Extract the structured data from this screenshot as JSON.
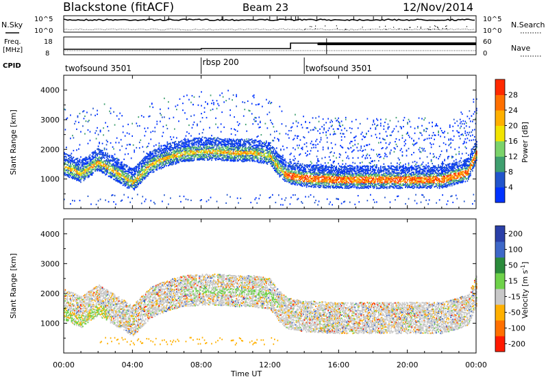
{
  "header": {
    "station": "Blackstone (fitACF)",
    "beam": "Beam 23",
    "date": "12/Nov/2014"
  },
  "labels": {
    "nsky": "N.Sky",
    "nsearch": "N.Search",
    "freq_line1": "Freq.",
    "freq_line2": "[MHz]",
    "cpid": "CPID",
    "nave": "Nave",
    "nsky_top": "10^5",
    "nsky_bottom": "10^0",
    "nsearch_top": "10^5",
    "nsearch_bottom": "10^0",
    "freq_top": "18",
    "freq_bottom": "8",
    "nave_top": "60",
    "nave_bottom": "0"
  },
  "cpid_segments": [
    {
      "label": "twofsound 3501",
      "start_h": 0,
      "end_h": 8
    },
    {
      "label": "rbsp 200",
      "start_h": 8,
      "end_h": 14
    },
    {
      "label": "twofsound 3501",
      "start_h": 14,
      "end_h": 24
    }
  ],
  "chart_data": [
    {
      "type": "heatmap",
      "title": "Power",
      "xlabel": "",
      "ylabel": "Slant Range [km]",
      "colorbar_label": "Power [dB]",
      "xlim": [
        0,
        24
      ],
      "ylim": [
        0,
        4500
      ],
      "yticks": [
        1000,
        2000,
        3000,
        4000
      ],
      "colorbar_ticks": [
        4,
        8,
        12,
        16,
        20,
        24,
        28
      ],
      "colorbar_range": [
        0,
        32
      ],
      "colors": [
        "#0033ff",
        "#2255cc",
        "#3f9f6f",
        "#7bd36b",
        "#f2e400",
        "#ffb000",
        "#ff7000",
        "#ff2a00"
      ],
      "bands": [
        {
          "x": [
            0,
            1,
            2,
            3,
            4,
            5,
            6,
            7,
            8,
            9,
            10,
            11,
            12,
            12.5,
            13,
            14,
            16,
            18,
            20,
            22,
            23.5,
            24
          ],
          "y": [
            1450,
            1200,
            1600,
            1250,
            900,
            1500,
            1750,
            1900,
            1950,
            1950,
            1900,
            1900,
            1800,
            1400,
            1150,
            1050,
            1000,
            1000,
            1000,
            1000,
            1250,
            1900
          ],
          "level": 0.75
        }
      ]
    },
    {
      "type": "heatmap",
      "title": "Velocity",
      "xlabel": "Time UT",
      "ylabel": "Slant Range [km]",
      "colorbar_label": "Velocity [m s-1]",
      "xlim": [
        0,
        24
      ],
      "ylim": [
        0,
        4500
      ],
      "yticks": [
        1000,
        2000,
        3000,
        4000
      ],
      "xticks": [
        "00:00",
        "04:00",
        "08:00",
        "12:00",
        "16:00",
        "20:00",
        "00:00"
      ],
      "colorbar_ticks": [
        200,
        100,
        50,
        15,
        -15,
        -50,
        -100,
        -200
      ],
      "colors": [
        "#2a3fa8",
        "#3e68c8",
        "#2b8a3b",
        "#6fd24a",
        "#c8c8c8",
        "#ffb000",
        "#ff7000",
        "#ff1a00"
      ]
    }
  ]
}
